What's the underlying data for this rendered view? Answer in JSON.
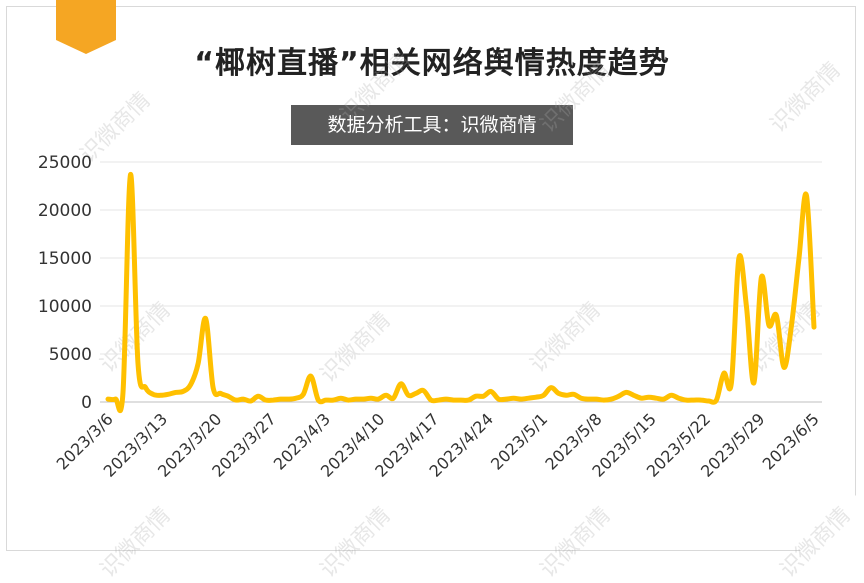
{
  "header": {
    "title": "“椰树直播”相关网络舆情热度趋势",
    "subtitle": "数据分析工具：识微商情"
  },
  "watermark": "识微商情",
  "colors": {
    "line": "#FFC000",
    "accent_tab": "#F5A623",
    "grid": "#e6e6e6"
  },
  "chart_data": {
    "type": "line",
    "title": "“椰树直播”相关网络舆情热度趋势",
    "xlabel": "",
    "ylabel": "",
    "ylim": [
      0,
      25000
    ],
    "yticks": [
      0,
      5000,
      10000,
      15000,
      20000,
      25000
    ],
    "xtick_labels": [
      "2023/3/6",
      "2023/3/13",
      "2023/3/20",
      "2023/3/27",
      "2023/4/3",
      "2023/4/10",
      "2023/4/17",
      "2023/4/24",
      "2023/5/1",
      "2023/5/8",
      "2023/5/15",
      "2023/5/22",
      "2023/5/29",
      "2023/6/5"
    ],
    "grid": true,
    "legend": "none",
    "series": [
      {
        "values": [
          300,
          300,
          1000,
          23700,
          4000,
          1500,
          800,
          700,
          800,
          1000,
          1100,
          1800,
          4000,
          8700,
          1500,
          900,
          600,
          200,
          300,
          100,
          600,
          200,
          200,
          300,
          300,
          400,
          800,
          2700,
          200,
          200,
          200,
          400,
          200,
          300,
          300,
          400,
          300,
          700,
          400,
          1900,
          700,
          900,
          1200,
          200,
          200,
          300,
          200,
          200,
          200,
          600,
          600,
          1100,
          300,
          300,
          400,
          300,
          400,
          500,
          700,
          1500,
          900,
          700,
          800,
          400,
          300,
          300,
          200,
          300,
          600,
          1000,
          700,
          400,
          500,
          400,
          300,
          700,
          400,
          200,
          200,
          200,
          100,
          200,
          3000,
          2000,
          15000,
          10000,
          2000,
          13000,
          8000,
          9000,
          3600,
          8000,
          15000,
          21500,
          7800
        ]
      }
    ]
  }
}
